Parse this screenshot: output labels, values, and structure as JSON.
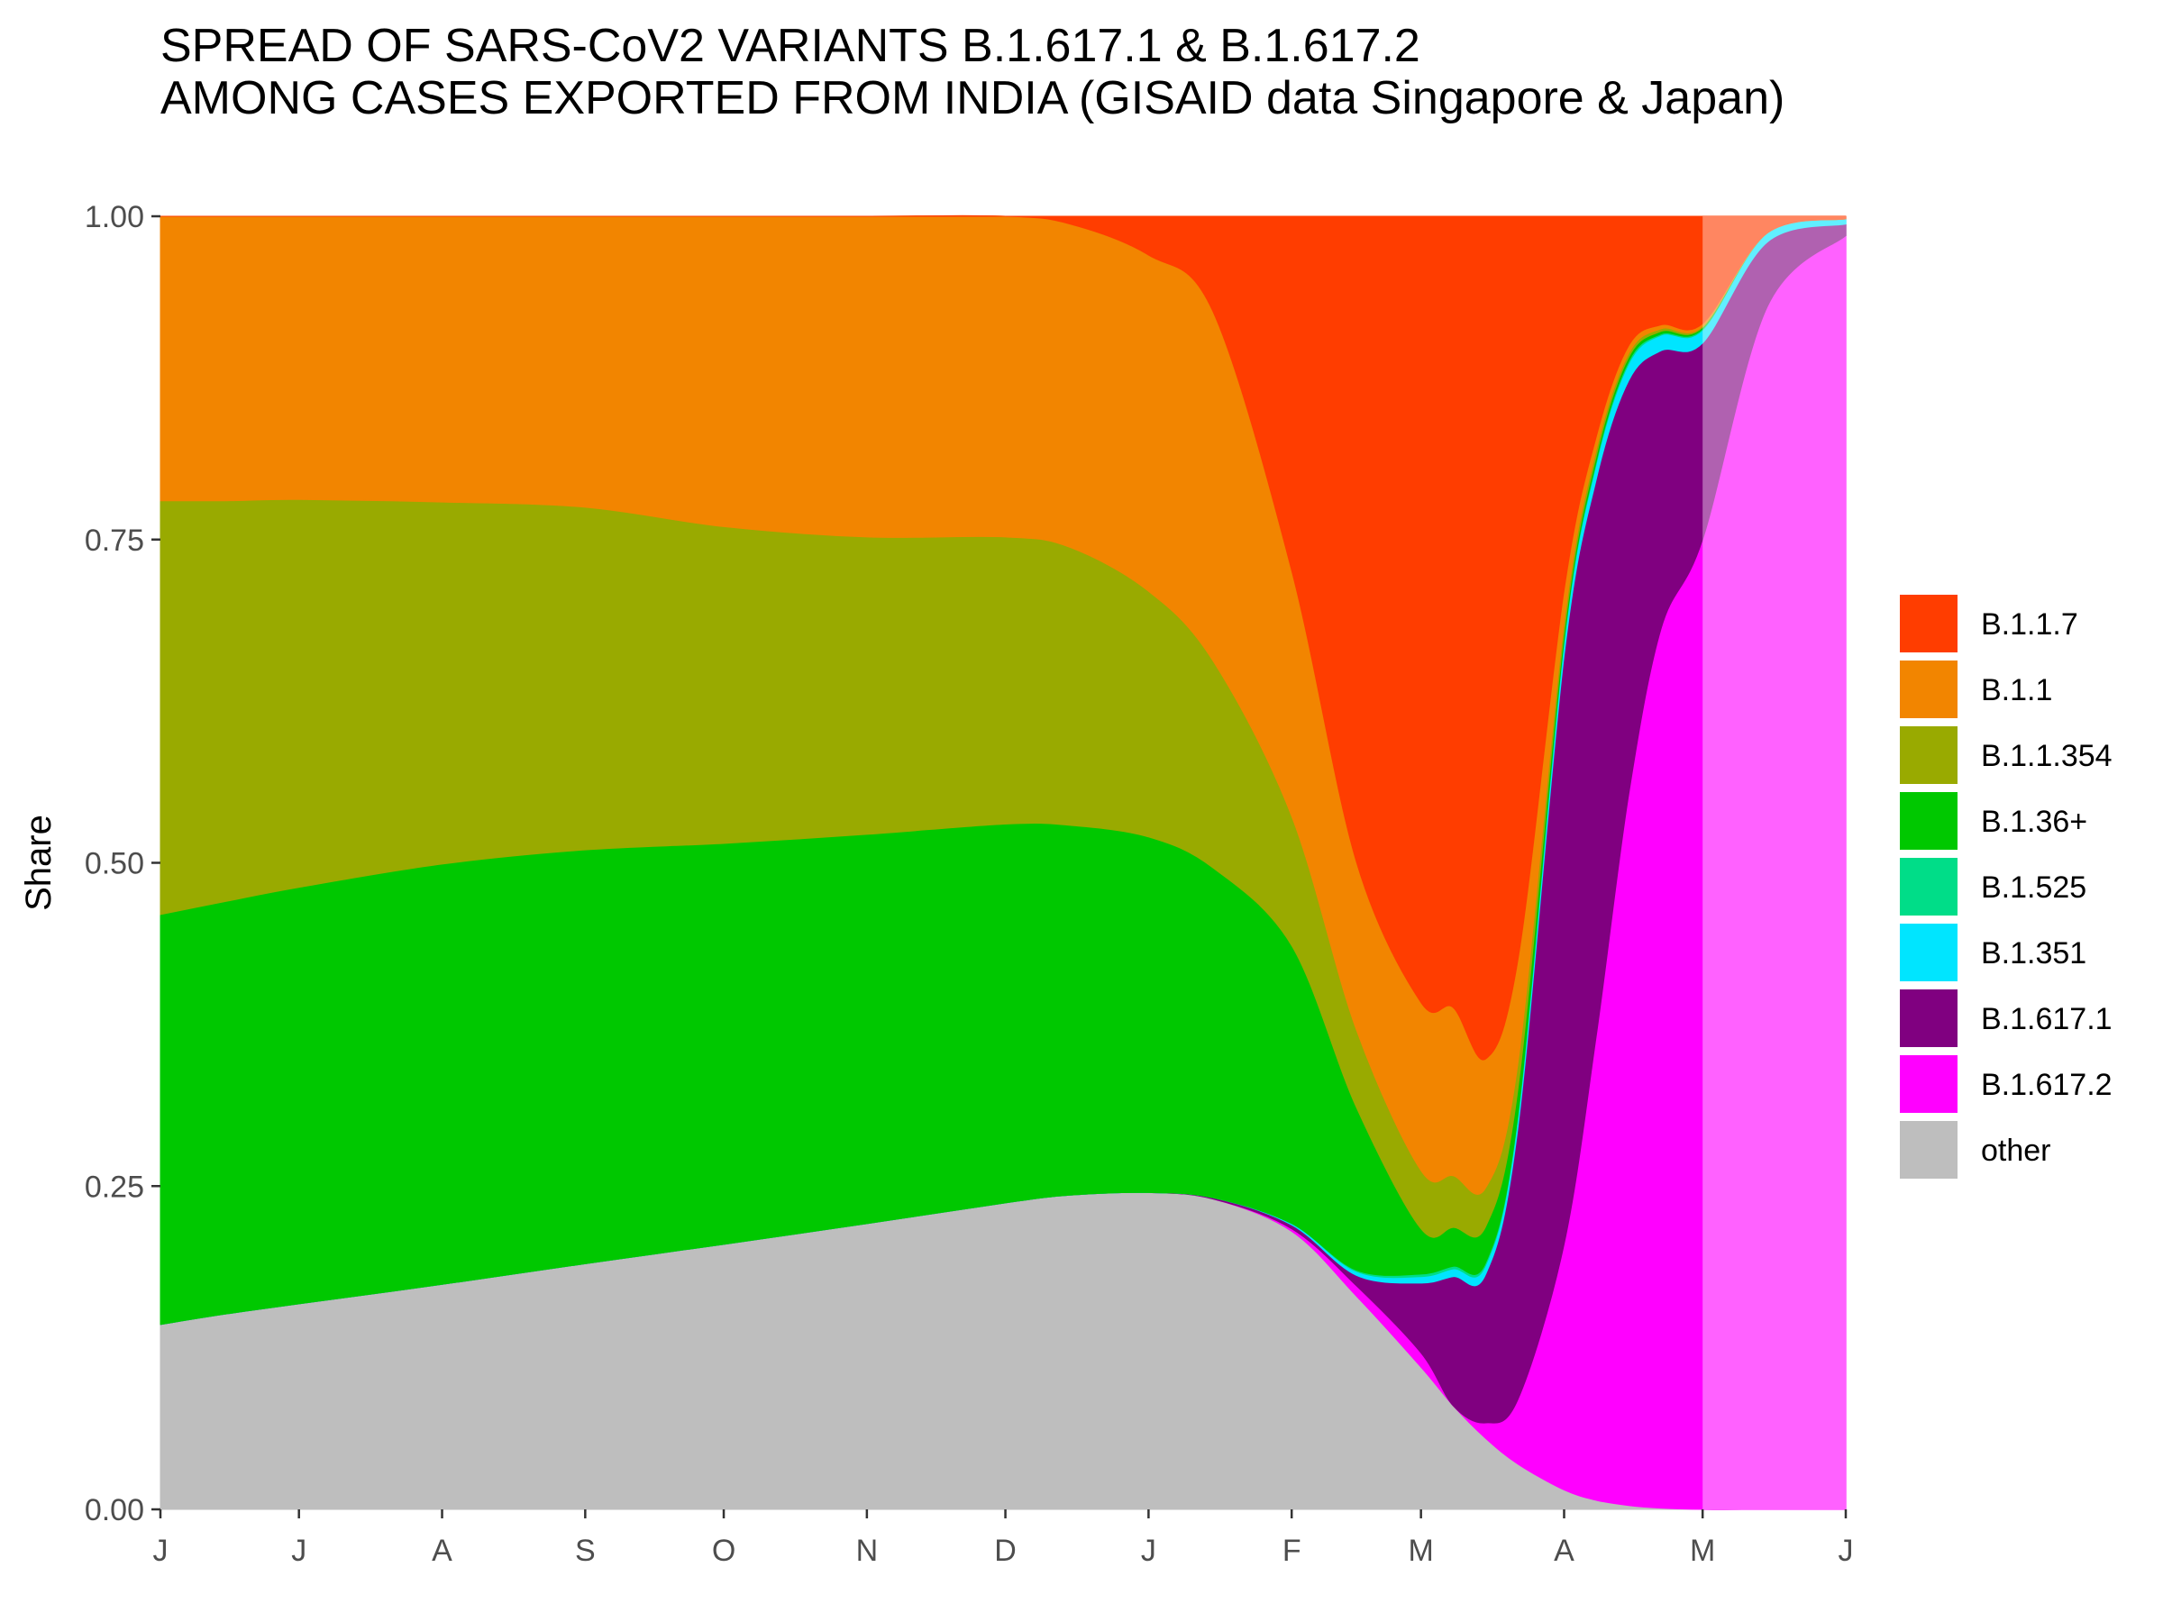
{
  "title": {
    "line1": "SPREAD OF SARS-CoV2 VARIANTS B.1.617.1 & B.1.617.2",
    "line2": "AMONG CASES EXPORTED FROM INDIA (GISAID data Singapore & Japan)"
  },
  "chart_data": {
    "type": "area",
    "stacked": "fill",
    "title": "SPREAD OF SARS-CoV2 VARIANTS B.1.617.1 & B.1.617.2 AMONG CASES EXPORTED FROM INDIA (GISAID data Singapore & Japan)",
    "xlabel": "",
    "ylabel": "Share",
    "ylim": [
      0,
      1
    ],
    "yticks": [
      "0.00",
      "0.25",
      "0.50",
      "0.75",
      "1.00"
    ],
    "xticks": [
      "J",
      "J",
      "A",
      "S",
      "O",
      "N",
      "D",
      "J",
      "F",
      "M",
      "A",
      "M",
      "J"
    ],
    "x": [
      "2020-06-01",
      "2020-06-15",
      "2020-07-01",
      "2020-08-01",
      "2020-09-01",
      "2020-10-01",
      "2020-11-01",
      "2020-12-01",
      "2020-12-15",
      "2021-01-01",
      "2021-01-15",
      "2021-02-01",
      "2021-02-15",
      "2021-03-01",
      "2021-03-08",
      "2021-03-15",
      "2021-03-22",
      "2021-04-01",
      "2021-04-08",
      "2021-04-15",
      "2021-04-22",
      "2021-05-01",
      "2021-05-15",
      "2021-06-01"
    ],
    "forecast_from": "2021-05-01",
    "legend_position": "right",
    "grid": false,
    "series": [
      {
        "name": "other",
        "color": "#BEBEBE",
        "values": [
          0.143,
          0.151,
          0.159,
          0.174,
          0.19,
          0.205,
          0.221,
          0.237,
          0.243,
          0.245,
          0.24,
          0.215,
          0.165,
          0.11,
          0.08,
          0.055,
          0.035,
          0.015,
          0.007,
          0.003,
          0.001,
          0.0,
          0.0,
          0.0
        ]
      },
      {
        "name": "B.1.617.2",
        "color": "#FF00FF",
        "values": [
          0,
          0,
          0,
          0,
          0,
          0,
          0,
          0,
          0,
          0,
          0,
          0.002,
          0.008,
          0.011,
          0.0,
          0.012,
          0.05,
          0.19,
          0.36,
          0.55,
          0.68,
          0.75,
          0.93,
          0.985
        ]
      },
      {
        "name": "B.1.617.1",
        "color": "#800080",
        "values": [
          0,
          0,
          0,
          0,
          0,
          0,
          0,
          0,
          0,
          0,
          0.001,
          0.003,
          0.008,
          0.054,
          0.1,
          0.115,
          0.21,
          0.455,
          0.43,
          0.32,
          0.215,
          0.152,
          0.05,
          0.009
        ]
      },
      {
        "name": "B.1.351",
        "color": "#00E5FF",
        "values": [
          0,
          0,
          0,
          0,
          0,
          0,
          0,
          0,
          0,
          0,
          0,
          0.001,
          0.003,
          0.005,
          0.006,
          0.007,
          0.008,
          0.01,
          0.012,
          0.013,
          0.012,
          0.01,
          0.007,
          0.004
        ]
      },
      {
        "name": "B.1.525",
        "color": "#00DD88",
        "values": [
          0,
          0,
          0,
          0,
          0,
          0,
          0,
          0,
          0,
          0,
          0,
          0,
          0.001,
          0.002,
          0.002,
          0.002,
          0.002,
          0.002,
          0.002,
          0.002,
          0.001,
          0.001,
          0.0,
          0.0
        ]
      },
      {
        "name": "B.1.36+",
        "color": "#00C800",
        "values": [
          0.317,
          0.319,
          0.322,
          0.325,
          0.32,
          0.31,
          0.301,
          0.293,
          0.286,
          0.275,
          0.255,
          0.215,
          0.126,
          0.035,
          0.03,
          0.028,
          0.02,
          0.006,
          0.004,
          0.003,
          0.002,
          0.001,
          0.0,
          0.0
        ]
      },
      {
        "name": "B.1.1.354",
        "color": "#99AA00",
        "values": [
          0.32,
          0.31,
          0.3,
          0.28,
          0.265,
          0.245,
          0.23,
          0.222,
          0.215,
          0.19,
          0.16,
          0.1,
          0.06,
          0.045,
          0.04,
          0.03,
          0.02,
          0.008,
          0.005,
          0.003,
          0.002,
          0.001,
          0.0,
          0.0
        ]
      },
      {
        "name": "B.1.1",
        "color": "#F28500",
        "values": [
          0.22,
          0.22,
          0.219,
          0.221,
          0.225,
          0.24,
          0.248,
          0.248,
          0.25,
          0.26,
          0.27,
          0.19,
          0.13,
          0.13,
          0.13,
          0.1,
          0.08,
          0.025,
          0.01,
          0.006,
          0.003,
          0.002,
          0.0,
          0.0
        ]
      },
      {
        "name": "B.1.1.7",
        "color": "#FF3D00",
        "values": [
          0,
          0,
          0,
          0,
          0,
          0,
          0,
          0,
          0.006,
          0.03,
          0.074,
          0.274,
          0.499,
          0.608,
          0.612,
          0.653,
          0.575,
          0.289,
          0.17,
          0.1,
          0.084,
          0.083,
          0.013,
          0.002
        ]
      }
    ],
    "legend": [
      "B.1.1.7",
      "B.1.1",
      "B.1.1.354",
      "B.1.36+",
      "B.1.525",
      "B.1.351",
      "B.1.617.1",
      "B.1.617.2",
      "other"
    ]
  }
}
